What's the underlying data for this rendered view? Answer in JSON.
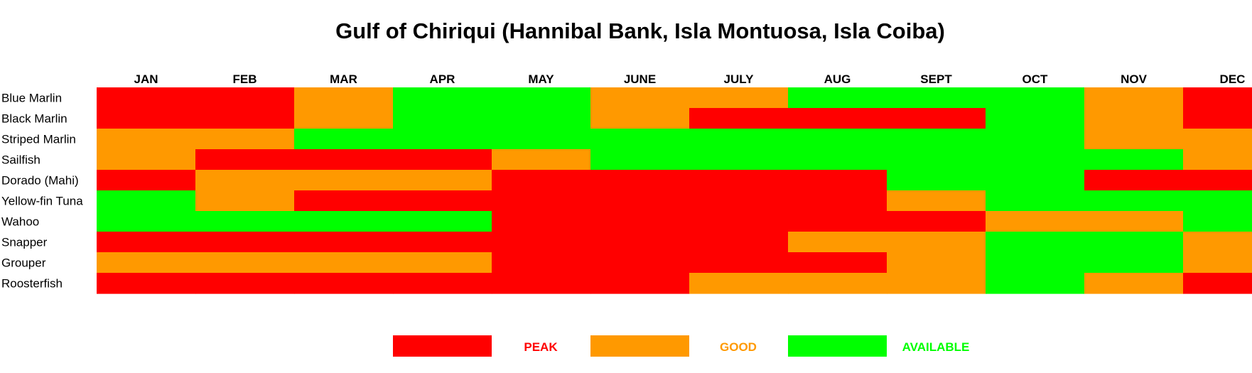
{
  "chart_data": {
    "type": "heatmap",
    "title": "Gulf of Chiriqui (Hannibal Bank, Isla Montuosa, Isla Coiba)",
    "months": [
      "JAN",
      "FEB",
      "MAR",
      "APR",
      "MAY",
      "JUNE",
      "JULY",
      "AUG",
      "SEPT",
      "OCT",
      "NOV",
      "DEC"
    ],
    "species": [
      "Blue Marlin",
      "Black Marlin",
      "Striped Marlin",
      "Sailfish",
      "Dorado (Mahi)",
      "Yellow-fin Tuna",
      "Wahoo",
      "Snapper",
      "Grouper",
      "Roosterfish"
    ],
    "values": [
      [
        "PEAK",
        "PEAK",
        "GOOD",
        "AVAILABLE",
        "AVAILABLE",
        "GOOD",
        "GOOD",
        "AVAILABLE",
        "AVAILABLE",
        "AVAILABLE",
        "GOOD",
        "PEAK"
      ],
      [
        "PEAK",
        "PEAK",
        "GOOD",
        "AVAILABLE",
        "AVAILABLE",
        "GOOD",
        "PEAK",
        "PEAK",
        "PEAK",
        "AVAILABLE",
        "GOOD",
        "PEAK"
      ],
      [
        "GOOD",
        "GOOD",
        "AVAILABLE",
        "AVAILABLE",
        "AVAILABLE",
        "AVAILABLE",
        "AVAILABLE",
        "AVAILABLE",
        "AVAILABLE",
        "AVAILABLE",
        "GOOD",
        "GOOD"
      ],
      [
        "GOOD",
        "PEAK",
        "PEAK",
        "PEAK",
        "GOOD",
        "AVAILABLE",
        "AVAILABLE",
        "AVAILABLE",
        "AVAILABLE",
        "AVAILABLE",
        "AVAILABLE",
        "GOOD"
      ],
      [
        "PEAK",
        "GOOD",
        "GOOD",
        "GOOD",
        "PEAK",
        "PEAK",
        "PEAK",
        "PEAK",
        "AVAILABLE",
        "AVAILABLE",
        "PEAK",
        "PEAK"
      ],
      [
        "AVAILABLE",
        "GOOD",
        "PEAK",
        "PEAK",
        "PEAK",
        "PEAK",
        "PEAK",
        "PEAK",
        "GOOD",
        "AVAILABLE",
        "AVAILABLE",
        "AVAILABLE"
      ],
      [
        "AVAILABLE",
        "AVAILABLE",
        "AVAILABLE",
        "AVAILABLE",
        "PEAK",
        "PEAK",
        "PEAK",
        "PEAK",
        "PEAK",
        "GOOD",
        "GOOD",
        "AVAILABLE"
      ],
      [
        "PEAK",
        "PEAK",
        "PEAK",
        "PEAK",
        "PEAK",
        "PEAK",
        "PEAK",
        "GOOD",
        "GOOD",
        "AVAILABLE",
        "AVAILABLE",
        "GOOD"
      ],
      [
        "GOOD",
        "GOOD",
        "GOOD",
        "GOOD",
        "PEAK",
        "PEAK",
        "PEAK",
        "PEAK",
        "GOOD",
        "AVAILABLE",
        "AVAILABLE",
        "GOOD"
      ],
      [
        "PEAK",
        "PEAK",
        "PEAK",
        "PEAK",
        "PEAK",
        "PEAK",
        "GOOD",
        "GOOD",
        "GOOD",
        "AVAILABLE",
        "GOOD",
        "PEAK"
      ]
    ],
    "legend": [
      {
        "key": "PEAK",
        "label": "PEAK",
        "color": "#ff0000"
      },
      {
        "key": "GOOD",
        "label": "GOOD",
        "color": "#ff9900"
      },
      {
        "key": "AVAILABLE",
        "label": "AVAILABLE",
        "color": "#00ff00"
      }
    ],
    "legend_position": "bottom-center",
    "grid": false
  }
}
